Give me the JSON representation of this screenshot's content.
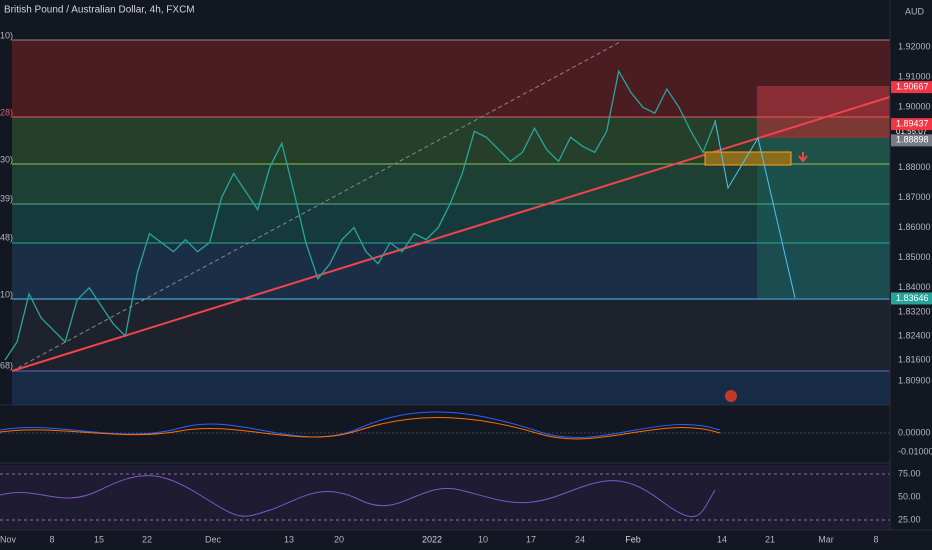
{
  "header": {
    "title": "British Pound / Australian Dollar, 4h, FXCM"
  },
  "currency": "AUD",
  "price_axis": [
    {
      "value": 1.92,
      "label": "1.92000"
    },
    {
      "value": 1.91,
      "label": "1.91000"
    },
    {
      "value": 1.9,
      "label": "1.90000"
    },
    {
      "value": 1.88,
      "label": "1.88000"
    },
    {
      "value": 1.87,
      "label": "1.87000"
    },
    {
      "value": 1.86,
      "label": "1.86000"
    },
    {
      "value": 1.85,
      "label": "1.85000"
    },
    {
      "value": 1.84,
      "label": "1.84000"
    },
    {
      "value": 1.832,
      "label": "1.83200"
    },
    {
      "value": 1.824,
      "label": "1.82400"
    },
    {
      "value": 1.816,
      "label": "1.81600"
    },
    {
      "value": 1.809,
      "label": "1.80900"
    }
  ],
  "price_tags": [
    {
      "value": 1.90667,
      "label": "1.90667"
    },
    {
      "value": 1.89437,
      "label": "1.89437"
    },
    {
      "value": 1.88898,
      "label": "1.88898"
    },
    {
      "value": 1.83646,
      "label": "1.83646"
    }
  ],
  "countdown": "01:55:07",
  "fib_labels": [
    "10)",
    "28)",
    "30)",
    "39)",
    "48)",
    "10)",
    "68)"
  ],
  "time_axis": [
    "Nov",
    "8",
    "15",
    "22",
    "Dec",
    "13",
    "20",
    "2022",
    "10",
    "17",
    "24",
    "Feb",
    "14",
    "21",
    "Mar",
    "8"
  ],
  "macd_axis": [
    "0.00000",
    "-0.01000"
  ],
  "rsi_axis": [
    "75.00",
    "50.00",
    "25.00"
  ],
  "price": [
    1.816,
    1.822,
    1.838,
    1.83,
    1.826,
    1.822,
    1.836,
    1.84,
    1.834,
    1.828,
    1.824,
    1.845,
    1.858,
    1.855,
    1.852,
    1.856,
    1.852,
    1.855,
    1.87,
    1.878,
    1.872,
    1.866,
    1.88,
    1.888,
    1.872,
    1.855,
    1.843,
    1.848,
    1.856,
    1.86,
    1.852,
    1.848,
    1.855,
    1.852,
    1.858,
    1.856,
    1.86,
    1.868,
    1.878,
    1.892,
    1.89,
    1.886,
    1.882,
    1.885,
    1.893,
    1.886,
    1.882,
    1.89,
    1.887,
    1.885,
    1.892,
    1.912,
    1.905,
    1.9,
    1.898,
    1.906,
    1.9,
    1.892,
    1.885,
    1.895
  ]
}
